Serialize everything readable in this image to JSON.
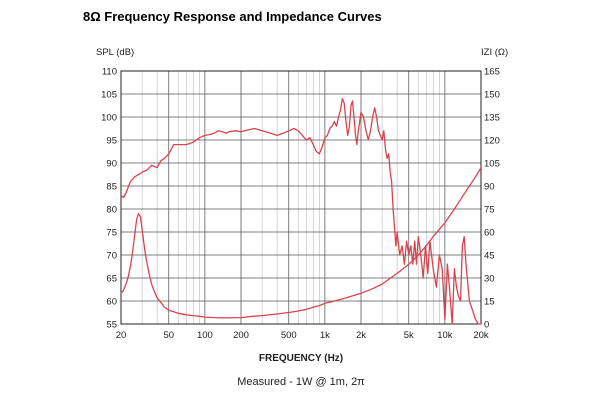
{
  "page": {
    "title": "8Ω Frequency Response and Impedance Curves"
  },
  "chart_data": {
    "type": "line",
    "title": "8Ω Frequency Response and Impedance Curves",
    "xlabel": "FREQUENCY (Hz)",
    "ylabel_left": "SPL (dB)",
    "ylabel_right": "IZI (Ω)",
    "caption": "Measured - 1W @ 1m, 2π",
    "xscale": "log",
    "xlim": [
      20,
      20000
    ],
    "ylim_left": [
      55,
      110
    ],
    "ylim_right": [
      0,
      165
    ],
    "grid": true,
    "x_ticks": [
      {
        "value": 20,
        "label": "20"
      },
      {
        "value": 50,
        "label": "50"
      },
      {
        "value": 100,
        "label": "100"
      },
      {
        "value": 200,
        "label": "200"
      },
      {
        "value": 500,
        "label": "500"
      },
      {
        "value": 1000,
        "label": "1k"
      },
      {
        "value": 2000,
        "label": "2k"
      },
      {
        "value": 5000,
        "label": "5k"
      },
      {
        "value": 10000,
        "label": "10k"
      },
      {
        "value": 20000,
        "label": "20k"
      }
    ],
    "y_ticks_left": [
      {
        "value": 110,
        "label": "110"
      },
      {
        "value": 105,
        "label": "105"
      },
      {
        "value": 100,
        "label": "100"
      },
      {
        "value": 95,
        "label": "95"
      },
      {
        "value": 90,
        "label": "90"
      },
      {
        "value": 85,
        "label": "85"
      },
      {
        "value": 80,
        "label": "80"
      },
      {
        "value": 75,
        "label": "75"
      },
      {
        "value": 70,
        "label": "70"
      },
      {
        "value": 65,
        "label": "65"
      },
      {
        "value": 60,
        "label": "60"
      },
      {
        "value": 55,
        "label": "55"
      }
    ],
    "y_ticks_right": [
      {
        "value": 165,
        "label": "165"
      },
      {
        "value": 150,
        "label": "150"
      },
      {
        "value": 135,
        "label": "135"
      },
      {
        "value": 120,
        "label": "120"
      },
      {
        "value": 105,
        "label": "105"
      },
      {
        "value": 90,
        "label": "90"
      },
      {
        "value": 75,
        "label": "75"
      },
      {
        "value": 60,
        "label": "60"
      },
      {
        "value": 45,
        "label": "45"
      },
      {
        "value": 30,
        "label": "30"
      },
      {
        "value": 15,
        "label": "15"
      },
      {
        "value": 0,
        "label": "0"
      }
    ],
    "colors": {
      "curve": "#d9434f",
      "grid": "#555555",
      "minor_grid": "#bbbbbb"
    },
    "series": [
      {
        "axis": "left",
        "x": [
          20,
          21,
          22,
          24,
          26,
          28,
          30,
          33,
          36,
          40,
          43,
          46,
          50,
          55,
          60,
          70,
          80,
          90,
          100,
          110,
          120,
          130,
          140,
          150,
          160,
          180,
          200,
          230,
          260,
          300,
          350,
          400,
          450,
          500,
          550,
          600,
          650,
          700,
          750,
          800,
          850,
          900,
          950,
          1000,
          1050,
          1100,
          1150,
          1200,
          1250,
          1300,
          1350,
          1400,
          1450,
          1500,
          1550,
          1600,
          1650,
          1700,
          1750,
          1800,
          1850,
          1900,
          1950,
          2000,
          2100,
          2200,
          2300,
          2400,
          2500,
          2600,
          2700,
          2800,
          2900,
          3000,
          3100,
          3200,
          3300,
          3400,
          3500,
          3600,
          3700,
          3800,
          3900,
          4000,
          4200,
          4400,
          4600,
          4800,
          5000,
          5200,
          5400,
          5600,
          5800,
          6000,
          6300,
          6600,
          6900,
          7200,
          7500,
          8000,
          8500,
          9000,
          9500,
          10000,
          10500,
          11000,
          11500,
          12000,
          12500,
          13000,
          13500,
          14000,
          14500,
          15000,
          16000,
          17000,
          18000,
          19000,
          20000
        ],
        "y": [
          83,
          82.5,
          83.5,
          86,
          87,
          87.5,
          88,
          88.5,
          89.5,
          89,
          90.5,
          91,
          92,
          94,
          94,
          94,
          94.5,
          95.5,
          96,
          96.2,
          96.5,
          97,
          96.8,
          96.5,
          96.8,
          97,
          96.8,
          97.2,
          97.5,
          97,
          96.5,
          96,
          96.5,
          97,
          97.5,
          97,
          96,
          95,
          95.5,
          94,
          92.5,
          92,
          93.5,
          95.5,
          96,
          97.5,
          98,
          99,
          98,
          100,
          101.5,
          104,
          103,
          99,
          96,
          98,
          102.5,
          103.5,
          100,
          96,
          94,
          97,
          99,
          101,
          100,
          97,
          95,
          97,
          100,
          102,
          100,
          97,
          96,
          95,
          97,
          93,
          91,
          92,
          88,
          86,
          80,
          76,
          72,
          75,
          70,
          72,
          68,
          73,
          70,
          72,
          68,
          73,
          68,
          74,
          70,
          65,
          72,
          66,
          73,
          67,
          63,
          70,
          67,
          56,
          68,
          62,
          55,
          67,
          63,
          61,
          60,
          72,
          74,
          68,
          60,
          58,
          56,
          55,
          55
        ]
      },
      {
        "axis": "right",
        "x": [
          20,
          21,
          22,
          23,
          24,
          25,
          26,
          27,
          28,
          29,
          30,
          31,
          32,
          34,
          36,
          38,
          40,
          43,
          46,
          50,
          55,
          60,
          70,
          80,
          90,
          100,
          120,
          150,
          200,
          250,
          300,
          400,
          500,
          600,
          700,
          800,
          900,
          1000,
          1200,
          1500,
          2000,
          2500,
          3000,
          4000,
          5000,
          6000,
          7000,
          8000,
          10000,
          12000,
          14000,
          16000,
          18000,
          20000
        ],
        "y": [
          20,
          22,
          26,
          31,
          38,
          47,
          58,
          68,
          72,
          70,
          62,
          53,
          45,
          34,
          26,
          21,
          17,
          14,
          11,
          9,
          8,
          7,
          6,
          5.5,
          5,
          4.5,
          4.2,
          4,
          4.2,
          5,
          5.5,
          6.5,
          7.5,
          8.5,
          9.5,
          11,
          12,
          13.5,
          15,
          17,
          20,
          23,
          26,
          33,
          39,
          45,
          51,
          57,
          66,
          75,
          83,
          90,
          96,
          102
        ]
      }
    ]
  }
}
